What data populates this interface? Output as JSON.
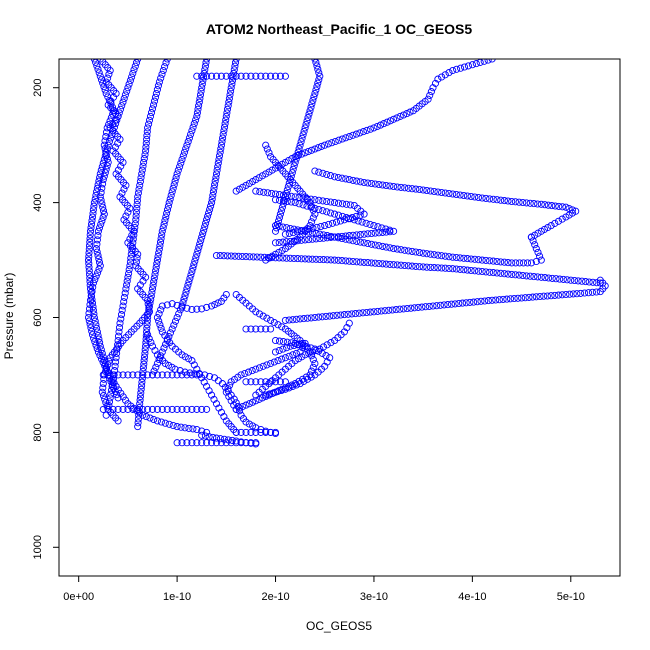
{
  "chart_data": {
    "type": "scatter",
    "title": "ATOM2 Northeast_Pacific_1 OC_GEOS5",
    "xlabel": "OC_GEOS5",
    "ylabel": "Pressure (mbar)",
    "xlim": [
      -2e-11,
      5.5e-10
    ],
    "ylim": [
      1050,
      150
    ],
    "y_reversed": true,
    "x_ticks": [
      0,
      1e-10,
      2e-10,
      3e-10,
      4e-10,
      5e-10
    ],
    "x_tick_labels": [
      "0e+00",
      "1e-10",
      "2e-10",
      "3e-10",
      "4e-10",
      "5e-10"
    ],
    "y_ticks": [
      200,
      400,
      600,
      800,
      1000
    ],
    "y_tick_labels": [
      "200",
      "400",
      "600",
      "800",
      "1000"
    ],
    "grid": false,
    "marker": "open-circle",
    "color": "#0000ff",
    "series": [
      {
        "x": [
          2.2e-11,
          3.2e-11,
          2.8e-11,
          3.8e-11,
          3e-11,
          4e-11,
          3.2e-11,
          4.2e-11,
          3.5e-11,
          4.5e-11,
          3.8e-11,
          4.8e-11,
          4.2e-11,
          5.2e-11,
          4.6e-11,
          5.6e-11,
          5e-11,
          6e-11,
          5.8e-11,
          6.8e-11,
          6e-11,
          7e-11,
          7.2e-11,
          6.2e-11,
          4.5e-11,
          3.2e-11,
          2.6e-11,
          2.4e-11,
          3e-11,
          4e-11
        ],
        "y": [
          150,
          170,
          190,
          210,
          230,
          250,
          270,
          290,
          310,
          330,
          350,
          370,
          390,
          410,
          430,
          450,
          470,
          490,
          510,
          530,
          550,
          570,
          590,
          610,
          640,
          670,
          700,
          730,
          760,
          780
        ]
      },
      {
        "x": [
          1.6e-11,
          2.2e-11,
          2.8e-11,
          3.6e-11,
          2.9e-11,
          2.6e-11,
          3e-11,
          2.5e-11,
          2.2e-11,
          2.6e-11,
          2e-11,
          1.8e-11,
          2.2e-11,
          1.5e-11,
          1.2e-11,
          1e-11,
          1.4e-11,
          2e-11,
          2.8e-11,
          3.8e-11,
          5e-11,
          6.5e-11,
          8e-11,
          1e-10,
          1.2e-10,
          1.3e-10,
          1.25e-10,
          1.4e-10,
          1.6e-10,
          1.7e-10,
          1.8e-10
        ],
        "y": [
          150,
          180,
          210,
          240,
          270,
          300,
          330,
          360,
          390,
          420,
          450,
          480,
          510,
          540,
          570,
          600,
          630,
          660,
          690,
          720,
          750,
          770,
          780,
          790,
          795,
          800,
          805,
          810,
          815,
          818,
          820
        ]
      },
      {
        "x": [
          9e-11,
          8.2e-11,
          7.6e-11,
          7e-11,
          6.8e-11,
          6.4e-11,
          6e-11,
          5.8e-11,
          5.5e-11,
          5.2e-11,
          4.8e-11,
          4.5e-11,
          4.2e-11,
          4e-11,
          3.8e-11,
          3.6e-11,
          3.4e-11,
          3.2e-11,
          3e-11,
          2.8e-11
        ],
        "y": [
          150,
          190,
          230,
          270,
          310,
          350,
          390,
          430,
          470,
          510,
          550,
          580,
          610,
          640,
          670,
          700,
          720,
          740,
          760,
          770
        ]
      },
      {
        "x": [
          1.3e-10,
          1.25e-10,
          1.2e-10,
          1.1e-10,
          1e-10,
          9.2e-11,
          8.5e-11,
          8e-11,
          7.5e-11,
          7e-11,
          6.8e-11,
          6.5e-11,
          6.2e-11,
          6e-11
        ],
        "y": [
          150,
          200,
          250,
          300,
          350,
          400,
          450,
          500,
          550,
          600,
          650,
          700,
          750,
          790
        ]
      },
      {
        "x": [
          6e-11,
          5e-11,
          4e-11,
          3e-11,
          2.2e-11,
          1.6e-11,
          1.2e-11,
          1e-11,
          1.2e-11,
          1.6e-11,
          2.2e-11,
          3e-11,
          4e-11
        ],
        "y": [
          150,
          200,
          250,
          300,
          350,
          400,
          450,
          500,
          550,
          600,
          650,
          700,
          740
        ]
      },
      {
        "x": [
          4.2e-10,
          4e-10,
          3.8e-10,
          3.65e-10,
          3.6e-10,
          3.55e-10,
          3.4e-10,
          3e-10,
          2.5e-10,
          2.2e-10,
          2e-10,
          1.8e-10,
          1.6e-10
        ],
        "y": [
          150,
          160,
          170,
          185,
          200,
          220,
          240,
          270,
          300,
          320,
          340,
          360,
          380
        ]
      },
      {
        "x": [
          2.4e-10,
          2.6e-10,
          2.9e-10,
          3.2e-10,
          3.5e-10,
          3.8e-10,
          4.1e-10,
          4.4e-10,
          4.7e-10,
          4.95e-10,
          5.05e-10,
          4.95e-10,
          4.8e-10,
          4.6e-10
        ],
        "y": [
          345,
          355,
          365,
          372,
          378,
          385,
          392,
          398,
          403,
          408,
          415,
          425,
          440,
          460
        ]
      },
      {
        "x": [
          4.6e-10,
          4.65e-10,
          4.7e-10,
          4.6e-10,
          4.4e-10,
          4.1e-10,
          3.8e-10,
          3.5e-10,
          3.2e-10,
          2.9e-10,
          2.6e-10,
          2.3e-10,
          2e-10
        ],
        "y": [
          460,
          480,
          500,
          505,
          505,
          500,
          495,
          488,
          480,
          470,
          460,
          450,
          440
        ]
      },
      {
        "x": [
          5.3e-10,
          5.35e-10,
          5.3e-10,
          5.1e-10,
          4.8e-10,
          4.5e-10,
          4.2e-10,
          3.9e-10,
          3.6e-10,
          3.3e-10,
          3e-10,
          2.7e-10,
          2.4e-10,
          2.1e-10
        ],
        "y": [
          535,
          545,
          555,
          558,
          562,
          566,
          570,
          575,
          580,
          585,
          590,
          595,
          600,
          605
        ]
      },
      {
        "x": [
          5.3e-10,
          5e-10,
          4.7e-10,
          4.4e-10,
          4.1e-10,
          3.8e-10,
          3.5e-10,
          3.2e-10,
          2.9e-10,
          2.6e-10,
          2.3e-10,
          2e-10,
          1.7e-10,
          1.4e-10
        ],
        "y": [
          540,
          535,
          530,
          525,
          520,
          515,
          512,
          508,
          504,
          500,
          498,
          496,
          494,
          492
        ]
      },
      {
        "x": [
          2e-10,
          2.2e-10,
          2.4e-10,
          2.6e-10,
          2.8e-10,
          3e-10,
          3.2e-10,
          2.9e-10,
          2.6e-10,
          2.3e-10,
          2e-10
        ],
        "y": [
          395,
          400,
          410,
          420,
          430,
          440,
          450,
          455,
          460,
          465,
          470
        ]
      },
      {
        "x": [
          1.8e-10,
          2e-10,
          2.2e-10,
          2.4e-10,
          2.6e-10,
          2.8e-10,
          2.9e-10,
          2.7e-10,
          2.5e-10,
          2.3e-10,
          2.1e-10
        ],
        "y": [
          380,
          385,
          390,
          395,
          400,
          405,
          420,
          430,
          440,
          448,
          455
        ]
      },
      {
        "x": [
          2.75e-10,
          2.7e-10,
          2.6e-10,
          2.45e-10,
          2.3e-10,
          2.2e-10,
          2.1e-10,
          2e-10,
          1.9e-10,
          1.8e-10
        ],
        "y": [
          610,
          625,
          640,
          655,
          665,
          675,
          690,
          705,
          720,
          735
        ]
      },
      {
        "x": [
          1.9e-10,
          1.95e-10,
          2.05e-10,
          2.15e-10,
          2.25e-10,
          2.35e-10,
          2.4e-10,
          2.35e-10,
          2.25e-10,
          2.1e-10,
          1.9e-10
        ],
        "y": [
          300,
          320,
          340,
          360,
          380,
          400,
          420,
          440,
          460,
          480,
          500
        ]
      },
      {
        "x": [
          2.4e-10,
          2.45e-10,
          2.4e-10,
          2.35e-10,
          2.3e-10,
          2.25e-10,
          2.2e-10,
          2.15e-10,
          2.1e-10,
          2.05e-10,
          2e-10
        ],
        "y": [
          150,
          180,
          210,
          240,
          270,
          300,
          330,
          360,
          390,
          420,
          450
        ]
      },
      {
        "x": [
          1.6e-10,
          1.7e-10,
          1.8e-10,
          1.95e-10,
          2.1e-10,
          2.25e-10,
          2.35e-10,
          2.4e-10,
          2.35e-10,
          2.2e-10,
          2e-10,
          1.8e-10,
          1.6e-10
        ],
        "y": [
          560,
          575,
          590,
          605,
          620,
          640,
          660,
          680,
          700,
          715,
          730,
          745,
          760
        ]
      },
      {
        "x": [
          2e-10,
          2.2e-10,
          2.4e-10,
          2.55e-10,
          2.5e-10,
          2.4e-10,
          2.25e-10,
          2.1e-10,
          1.9e-10
        ],
        "y": [
          640,
          645,
          655,
          670,
          685,
          700,
          715,
          725,
          735
        ]
      },
      {
        "x": [
          1.2e-10,
          1.3e-10,
          1.4e-10,
          1.5e-10,
          1.6e-10,
          1.7e-10,
          1.8e-10,
          1.9e-10,
          2e-10,
          2.1e-10
        ],
        "y": [
          180,
          180,
          180,
          180,
          180,
          180,
          180,
          180,
          180,
          180
        ]
      },
      {
        "x": [
          2.5e-11,
          3e-11,
          3.5e-11,
          4e-11,
          4.5e-11,
          5e-11,
          5.5e-11,
          6e-11,
          6.5e-11,
          7e-11,
          7.5e-11,
          8e-11,
          8.5e-11,
          9e-11,
          9.5e-11,
          1e-10,
          1.05e-10,
          1.1e-10,
          1.15e-10,
          1.2e-10
        ],
        "y": [
          700,
          700,
          700,
          700,
          700,
          700,
          700,
          700,
          700,
          700,
          700,
          700,
          700,
          700,
          700,
          700,
          700,
          700,
          700,
          700
        ]
      },
      {
        "x": [
          2.5e-11,
          3e-11,
          3.5e-11,
          4e-11,
          4.5e-11,
          5e-11,
          5.5e-11,
          6e-11,
          6.5e-11,
          7e-11,
          7.5e-11,
          8e-11,
          8.5e-11,
          9e-11,
          9.5e-11,
          1e-10,
          1.05e-10,
          1.1e-10,
          1.15e-10,
          1.2e-10,
          1.25e-10,
          1.3e-10
        ],
        "y": [
          760,
          760,
          760,
          760,
          760,
          760,
          760,
          760,
          760,
          760,
          760,
          760,
          760,
          760,
          760,
          760,
          760,
          760,
          760,
          760,
          760,
          760
        ]
      },
      {
        "x": [
          1e-10,
          1.05e-10,
          1.1e-10,
          1.15e-10,
          1.2e-10,
          1.25e-10,
          1.3e-10,
          1.35e-10,
          1.4e-10,
          1.45e-10,
          1.5e-10,
          1.55e-10,
          1.6e-10,
          1.65e-10,
          1.7e-10,
          1.75e-10,
          1.8e-10
        ],
        "y": [
          818,
          818,
          818,
          818,
          818,
          818,
          818,
          818,
          818,
          818,
          818,
          818,
          818,
          818,
          818,
          818,
          818
        ]
      },
      {
        "x": [
          1.6e-10,
          1.65e-10,
          1.7e-10,
          1.75e-10,
          1.8e-10,
          1.85e-10,
          1.9e-10,
          1.95e-10,
          2e-10
        ],
        "y": [
          800,
          800,
          800,
          800,
          800,
          800,
          800,
          800,
          800
        ]
      },
      {
        "x": [
          1.7e-10,
          1.75e-10,
          1.8e-10,
          1.85e-10,
          1.9e-10,
          1.95e-10,
          2e-10,
          2.05e-10,
          2.1e-10
        ],
        "y": [
          712,
          712,
          712,
          712,
          712,
          712,
          712,
          712,
          712
        ]
      },
      {
        "x": [
          1.7e-10,
          1.75e-10,
          1.8e-10,
          1.85e-10,
          1.9e-10,
          1.95e-10
        ],
        "y": [
          620,
          620,
          620,
          620,
          620,
          620
        ]
      },
      {
        "x": [
          1.5e-10,
          1.45e-10,
          1.35e-10,
          1.25e-10,
          1.15e-10,
          1.05e-10,
          9.5e-11,
          8.5e-11,
          8e-11,
          8.5e-11,
          9.5e-11,
          1.05e-10,
          1.15e-10,
          1.2e-10,
          1.25e-10,
          1.3e-10,
          1.35e-10,
          1.4e-10,
          1.45e-10,
          1.5e-10,
          1.55e-10,
          1.6e-10
        ],
        "y": [
          560,
          572,
          580,
          585,
          586,
          582,
          576,
          580,
          600,
          625,
          650,
          665,
          675,
          690,
          705,
          720,
          735,
          750,
          765,
          780,
          790,
          800
        ]
      },
      {
        "x": [
          7e-11,
          7.5e-11,
          8e-11,
          8.8e-11,
          9.8e-11,
          1.08e-10,
          1.18e-10,
          1.28e-10,
          1.38e-10,
          1.46e-10,
          1.52e-10,
          1.58e-10,
          1.62e-10,
          1.65e-10,
          1.7e-10,
          1.8e-10,
          1.9e-10,
          2e-10
        ],
        "y": [
          630,
          650,
          665,
          680,
          690,
          695,
          698,
          700,
          705,
          715,
          728,
          742,
          755,
          770,
          782,
          792,
          798,
          802
        ]
      },
      {
        "x": [
          2e-10,
          2.15e-10,
          2.3e-10,
          2.25e-10,
          2.1e-10,
          1.95e-10,
          1.8e-10,
          1.65e-10,
          1.55e-10,
          1.5e-10,
          1.55e-10,
          1.6e-10
        ],
        "y": [
          660,
          650,
          645,
          660,
          670,
          680,
          690,
          700,
          712,
          730,
          745,
          760
        ]
      },
      {
        "x": [
          1.6e-10,
          1.55e-10,
          1.5e-10,
          1.45e-10,
          1.4e-10,
          1.35e-10,
          1.3e-10,
          1.25e-10,
          1.2e-10,
          1.15e-10,
          1.1e-10,
          1.05e-10,
          1e-10,
          9.5e-11,
          9e-11,
          8.5e-11,
          8e-11,
          7.5e-11
        ],
        "y": [
          150,
          200,
          250,
          300,
          350,
          400,
          430,
          460,
          490,
          520,
          550,
          580,
          600,
          620,
          640,
          660,
          680,
          700
        ]
      }
    ]
  }
}
